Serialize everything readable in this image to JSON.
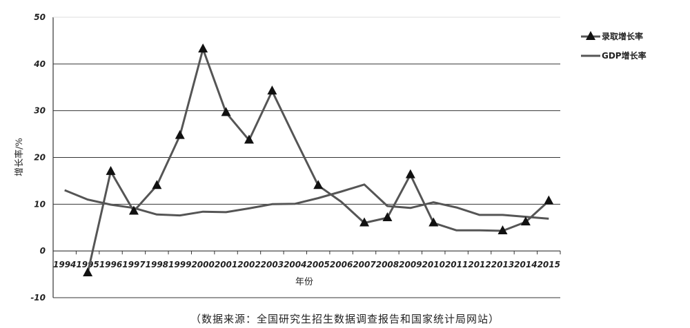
{
  "chart_data": {
    "type": "line",
    "title": "",
    "xlabel": "年份",
    "ylabel": "增长率/%",
    "x": [
      "1994",
      "1995",
      "1996",
      "1997",
      "1998",
      "1999",
      "2000",
      "2001",
      "2002",
      "2003",
      "2004",
      "2005",
      "2006",
      "2007",
      "2008",
      "2009",
      "2010",
      "2011",
      "2012",
      "2013",
      "2014",
      "2015"
    ],
    "yticks": [
      -10,
      0,
      10,
      20,
      30,
      40,
      50
    ],
    "ylim": [
      -10,
      50
    ],
    "grid": true,
    "legend_position": "right",
    "series": [
      {
        "name": "录取增长率",
        "marker": "triangle",
        "color": "#555555",
        "values": [
          null,
          -4.7,
          17.0,
          8.5,
          14.0,
          24.7,
          43.2,
          29.6,
          23.7,
          34.2,
          null,
          14.0,
          null,
          6.0,
          7.1,
          16.3,
          6.0,
          null,
          null,
          4.3,
          6.2,
          10.7
        ],
        "raw": [
          null,
          -4.7,
          17.0,
          8.5,
          14.0,
          24.7,
          43.2,
          29.6,
          23.7,
          34.2,
          24.0,
          14.0,
          10.5,
          6.0,
          7.1,
          16.3,
          6.0,
          4.4,
          4.4,
          4.3,
          6.2,
          10.7
        ]
      },
      {
        "name": "GDP增长率",
        "marker": "none",
        "color": "#555555",
        "values": [
          13.0,
          11.0,
          9.9,
          9.2,
          7.8,
          7.6,
          8.4,
          8.3,
          9.1,
          10.0,
          10.1,
          11.3,
          12.7,
          14.2,
          9.6,
          9.2,
          10.4,
          9.3,
          7.7,
          7.7,
          7.3,
          6.9
        ]
      }
    ]
  },
  "source_note": "（数据来源：全国研究生招生数据调查报告和国家统计局网站）"
}
